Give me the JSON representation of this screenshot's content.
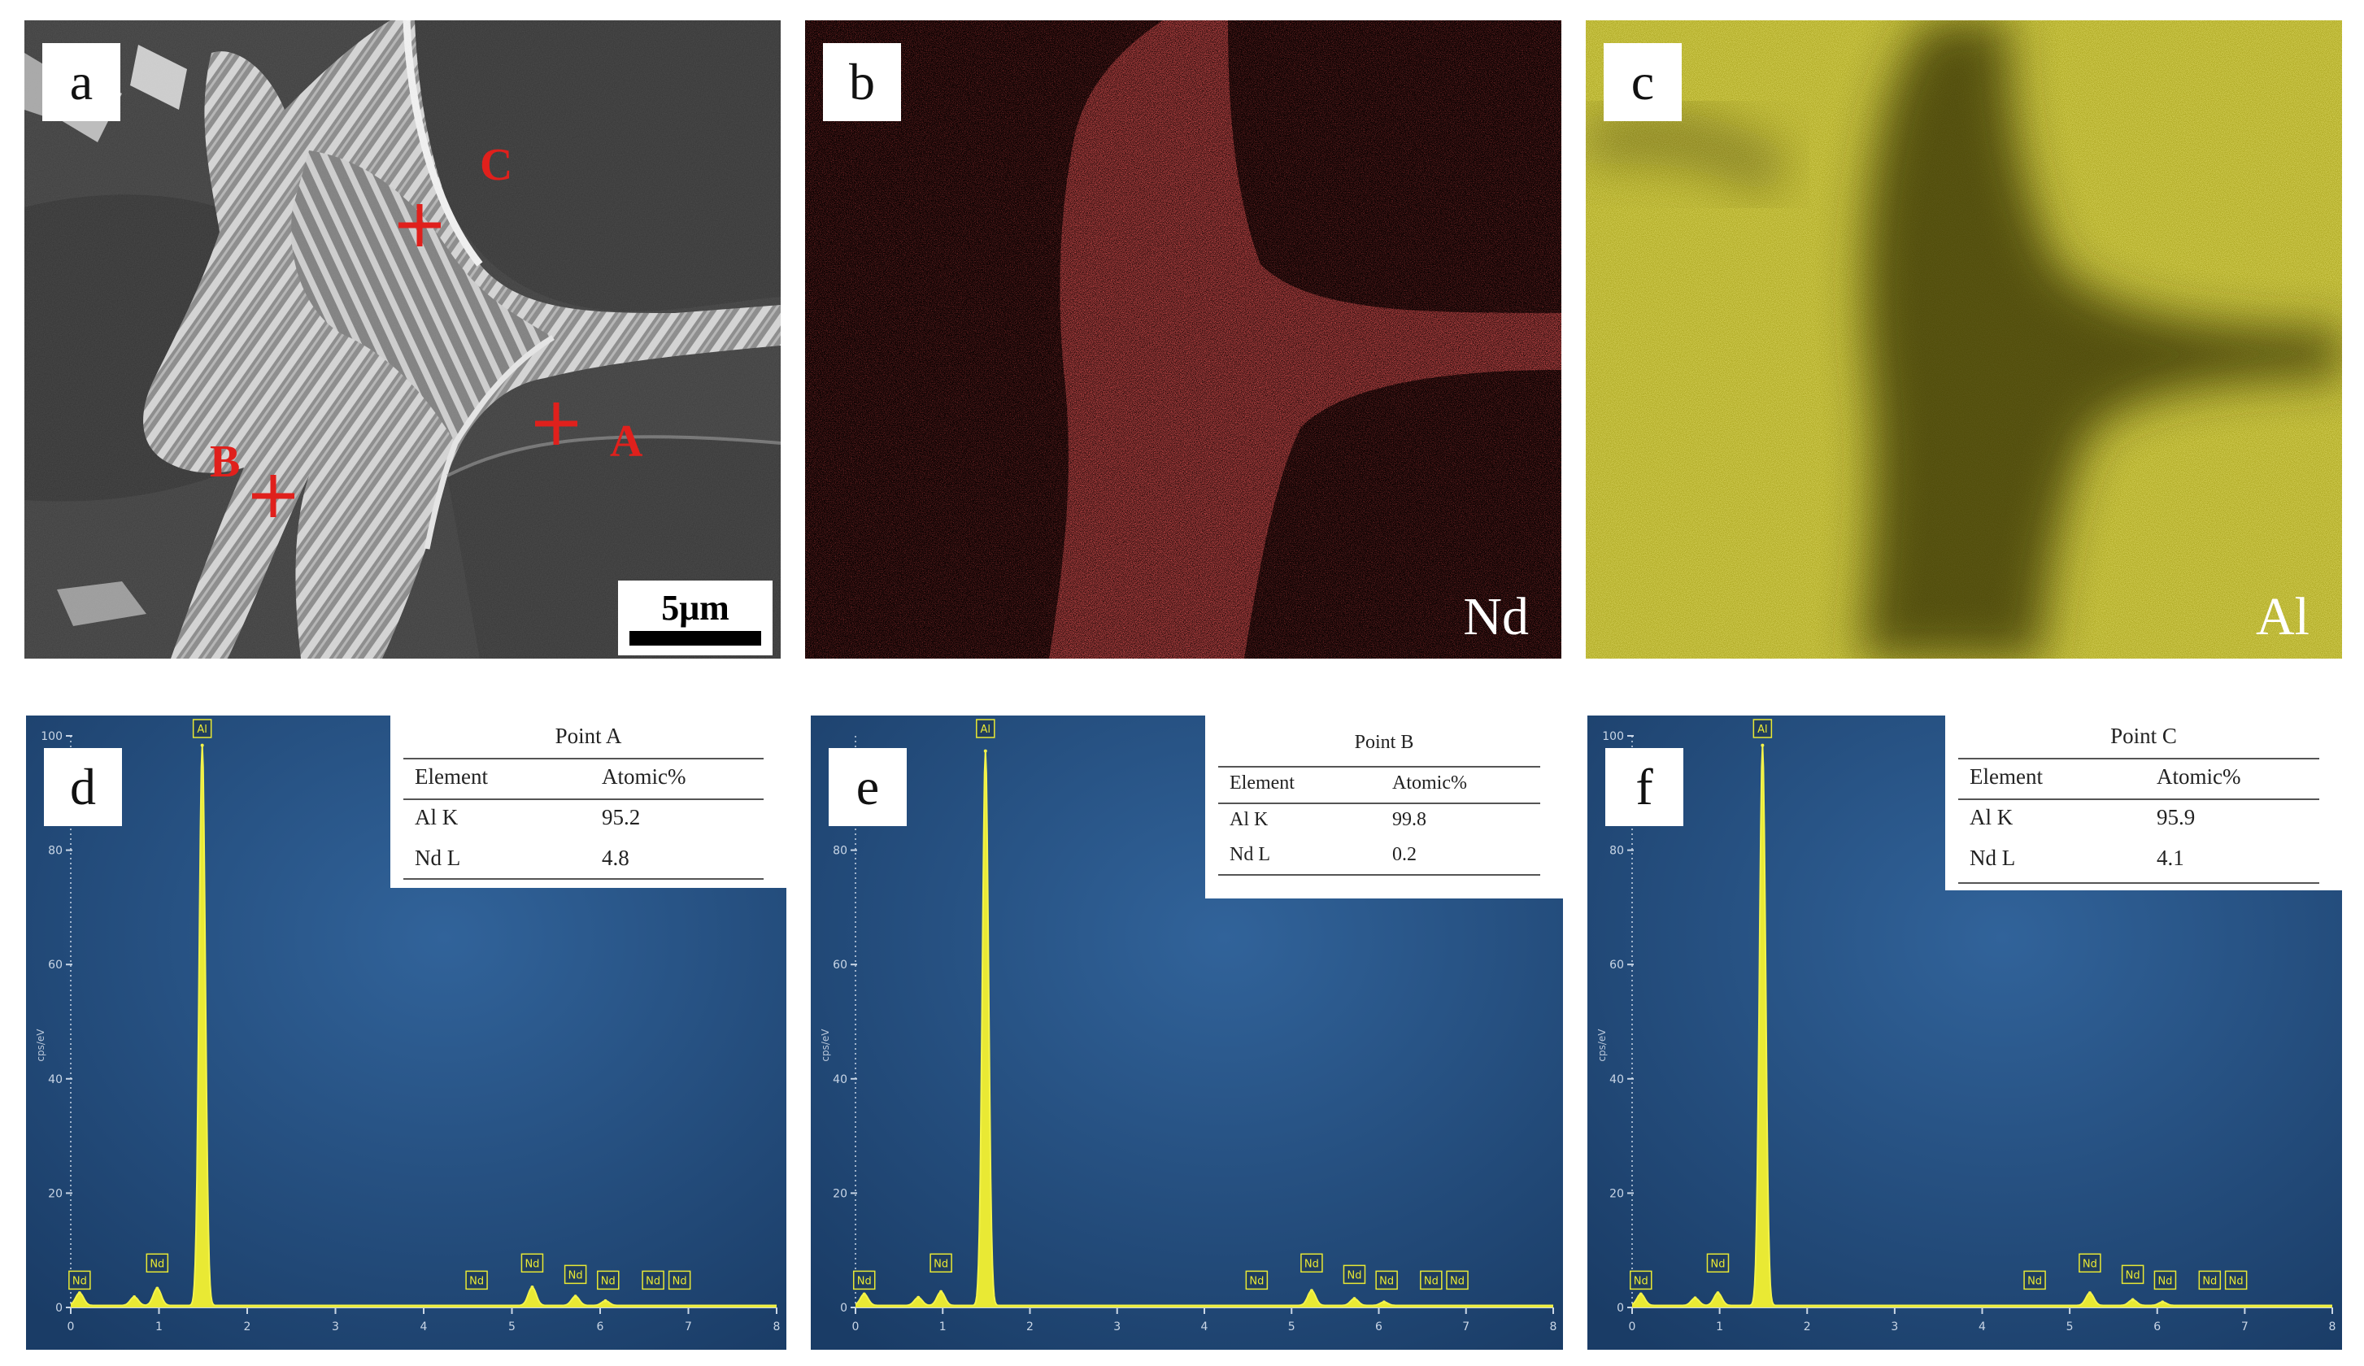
{
  "panels": {
    "a": {
      "letter": "a",
      "points": [
        "A",
        "B",
        "C"
      ],
      "scale_bar": "5μm"
    },
    "b": {
      "letter": "b",
      "element": "Nd",
      "map_color": "#d11a1a"
    },
    "c": {
      "letter": "c",
      "element": "Al",
      "map_color": "#c9c21e"
    },
    "d": {
      "letter": "d"
    },
    "e": {
      "letter": "e"
    },
    "f": {
      "letter": "f"
    }
  },
  "chart_data": [
    {
      "type": "line",
      "panel": "d",
      "table": {
        "title": "Point A",
        "headers": [
          "Element",
          "Atomic%"
        ],
        "rows": [
          [
            "Al K",
            "95.2"
          ],
          [
            "Nd L",
            "4.8"
          ]
        ]
      },
      "xlim": [
        0,
        8
      ],
      "ylim": [
        0,
        100
      ],
      "xticks": [
        "0",
        "1",
        "2",
        "3",
        "4",
        "5",
        "6",
        "7",
        "8"
      ],
      "yticks": [
        "0",
        "20",
        "40",
        "60",
        "80",
        "100"
      ],
      "ylabel": "cps/eV",
      "peaks": [
        {
          "x": 0.1,
          "y": 2.2
        },
        {
          "x": 0.72,
          "y": 1.5
        },
        {
          "x": 0.98,
          "y": 3.0
        },
        {
          "x": 1.49,
          "y": 98
        },
        {
          "x": 5.23,
          "y": 3.2
        },
        {
          "x": 5.72,
          "y": 1.6
        },
        {
          "x": 6.06,
          "y": 0.8
        }
      ],
      "peak_labels": [
        {
          "x": 0.1,
          "y": 3.5,
          "text": "Nd"
        },
        {
          "x": 0.98,
          "y": 6.5,
          "text": "Nd"
        },
        {
          "x": 1.49,
          "y": 100,
          "text": "Al"
        },
        {
          "x": 4.6,
          "y": 3.5,
          "text": "Nd"
        },
        {
          "x": 5.23,
          "y": 6.5,
          "text": "Nd"
        },
        {
          "x": 5.72,
          "y": 4.5,
          "text": "Nd"
        },
        {
          "x": 6.09,
          "y": 3.5,
          "text": "Nd"
        },
        {
          "x": 6.6,
          "y": 3.5,
          "text": "Nd"
        },
        {
          "x": 6.9,
          "y": 3.5,
          "text": "Nd"
        }
      ]
    },
    {
      "type": "line",
      "panel": "e",
      "table": {
        "title": "Point B",
        "headers": [
          "Element",
          "Atomic%"
        ],
        "rows": [
          [
            "Al K",
            "99.8"
          ],
          [
            "Nd L",
            "0.2"
          ]
        ]
      },
      "xlim": [
        0,
        8
      ],
      "ylim": [
        0,
        100
      ],
      "xticks": [
        "0",
        "1",
        "2",
        "3",
        "4",
        "5",
        "6",
        "7",
        "8"
      ],
      "yticks": [
        "0",
        "20",
        "40",
        "60",
        "80"
      ],
      "ylabel": "cps/eV",
      "peaks": [
        {
          "x": 0.1,
          "y": 2.0
        },
        {
          "x": 0.72,
          "y": 1.4
        },
        {
          "x": 0.98,
          "y": 2.4
        },
        {
          "x": 1.49,
          "y": 97
        },
        {
          "x": 5.23,
          "y": 2.6
        },
        {
          "x": 5.72,
          "y": 1.2
        },
        {
          "x": 6.06,
          "y": 0.6
        }
      ],
      "peak_labels": [
        {
          "x": 0.1,
          "y": 3.5,
          "text": "Nd"
        },
        {
          "x": 0.98,
          "y": 6.5,
          "text": "Nd"
        },
        {
          "x": 1.49,
          "y": 100,
          "text": "Al"
        },
        {
          "x": 4.6,
          "y": 3.5,
          "text": "Nd"
        },
        {
          "x": 5.23,
          "y": 6.5,
          "text": "Nd"
        },
        {
          "x": 5.72,
          "y": 4.5,
          "text": "Nd"
        },
        {
          "x": 6.09,
          "y": 3.5,
          "text": "Nd"
        },
        {
          "x": 6.6,
          "y": 3.5,
          "text": "Nd"
        },
        {
          "x": 6.9,
          "y": 3.5,
          "text": "Nd"
        }
      ]
    },
    {
      "type": "line",
      "panel": "f",
      "table": {
        "title": "Point C",
        "headers": [
          "Element",
          "Atomic%"
        ],
        "rows": [
          [
            "Al K",
            "95.9"
          ],
          [
            "Nd L",
            "4.1"
          ]
        ]
      },
      "xlim": [
        0,
        8
      ],
      "ylim": [
        0,
        100
      ],
      "xticks": [
        "0",
        "1",
        "2",
        "3",
        "4",
        "5",
        "6",
        "7",
        "8"
      ],
      "yticks": [
        "0",
        "20",
        "40",
        "60",
        "80",
        "100"
      ],
      "ylabel": "cps/eV",
      "peaks": [
        {
          "x": 0.1,
          "y": 2.0
        },
        {
          "x": 0.72,
          "y": 1.3
        },
        {
          "x": 0.98,
          "y": 2.2
        },
        {
          "x": 1.49,
          "y": 98
        },
        {
          "x": 5.23,
          "y": 2.2
        },
        {
          "x": 5.72,
          "y": 1.0
        },
        {
          "x": 6.06,
          "y": 0.6
        }
      ],
      "peak_labels": [
        {
          "x": 0.1,
          "y": 3.5,
          "text": "Nd"
        },
        {
          "x": 0.98,
          "y": 6.5,
          "text": "Nd"
        },
        {
          "x": 1.49,
          "y": 100,
          "text": "Al"
        },
        {
          "x": 4.6,
          "y": 3.5,
          "text": "Nd"
        },
        {
          "x": 5.23,
          "y": 6.5,
          "text": "Nd"
        },
        {
          "x": 5.72,
          "y": 4.5,
          "text": "Nd"
        },
        {
          "x": 6.09,
          "y": 3.5,
          "text": "Nd"
        },
        {
          "x": 6.6,
          "y": 3.5,
          "text": "Nd"
        },
        {
          "x": 6.9,
          "y": 3.5,
          "text": "Nd"
        }
      ]
    }
  ]
}
